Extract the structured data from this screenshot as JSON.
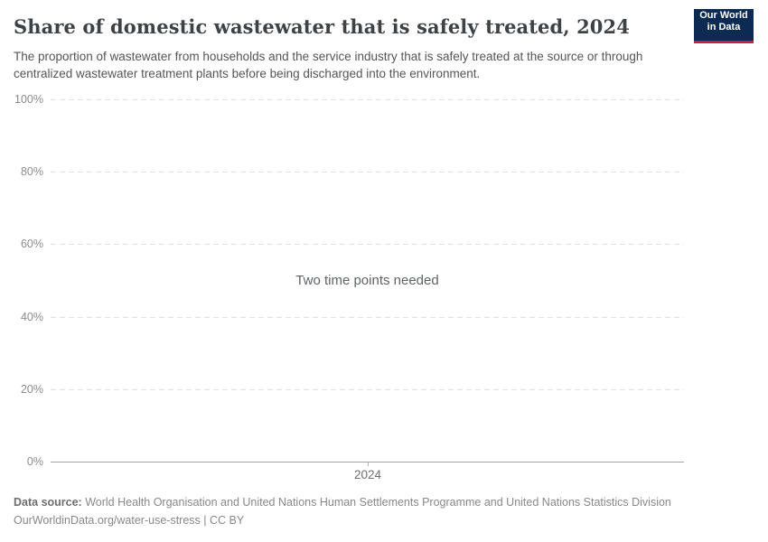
{
  "header": {
    "title": "Share of domestic wastewater that is safely treated, 2024",
    "subtitle": "The proportion of wastewater from households and the service industry that is safely treated at the source or through centralized wastewater treatment plants before being discharged into the environment.",
    "logo": {
      "line1": "Our World",
      "line2": "in Data",
      "bg_color": "#0c2a52",
      "stripe_color": "#c2262e"
    }
  },
  "chart_data": {
    "type": "line",
    "title": "Share of domestic wastewater that is safely treated, 2024",
    "empty_message": "Two time points needed",
    "series": [],
    "x": [],
    "x_ticks": [
      "2024"
    ],
    "y_ticks": [
      {
        "value": 100,
        "label": "100%"
      },
      {
        "value": 80,
        "label": "80%"
      },
      {
        "value": 60,
        "label": "60%"
      },
      {
        "value": 40,
        "label": "40%"
      },
      {
        "value": 20,
        "label": "20%"
      },
      {
        "value": 0,
        "label": "0%"
      }
    ],
    "ylim": [
      0,
      100
    ],
    "xlabel": "",
    "ylabel": "",
    "grid": "horizontal-dashed",
    "legend": "none"
  },
  "footer": {
    "data_source_label": "Data source:",
    "data_source_text": " World Health Organisation and United Nations Human Settlements Programme and United Nations Statistics Division",
    "license_line": "OurWorldinData.org/water-use-stress | CC BY"
  },
  "colors": {
    "title": "#3d4246",
    "subtitle": "#555555",
    "axis_label": "#8c8c8c",
    "gridline": "#e3e3e3",
    "axis_line": "#a3a3a3",
    "empty_message": "#5f6368",
    "footer": "#888888",
    "logo_bg": "#0c2a52",
    "logo_stripe": "#c2262e"
  }
}
